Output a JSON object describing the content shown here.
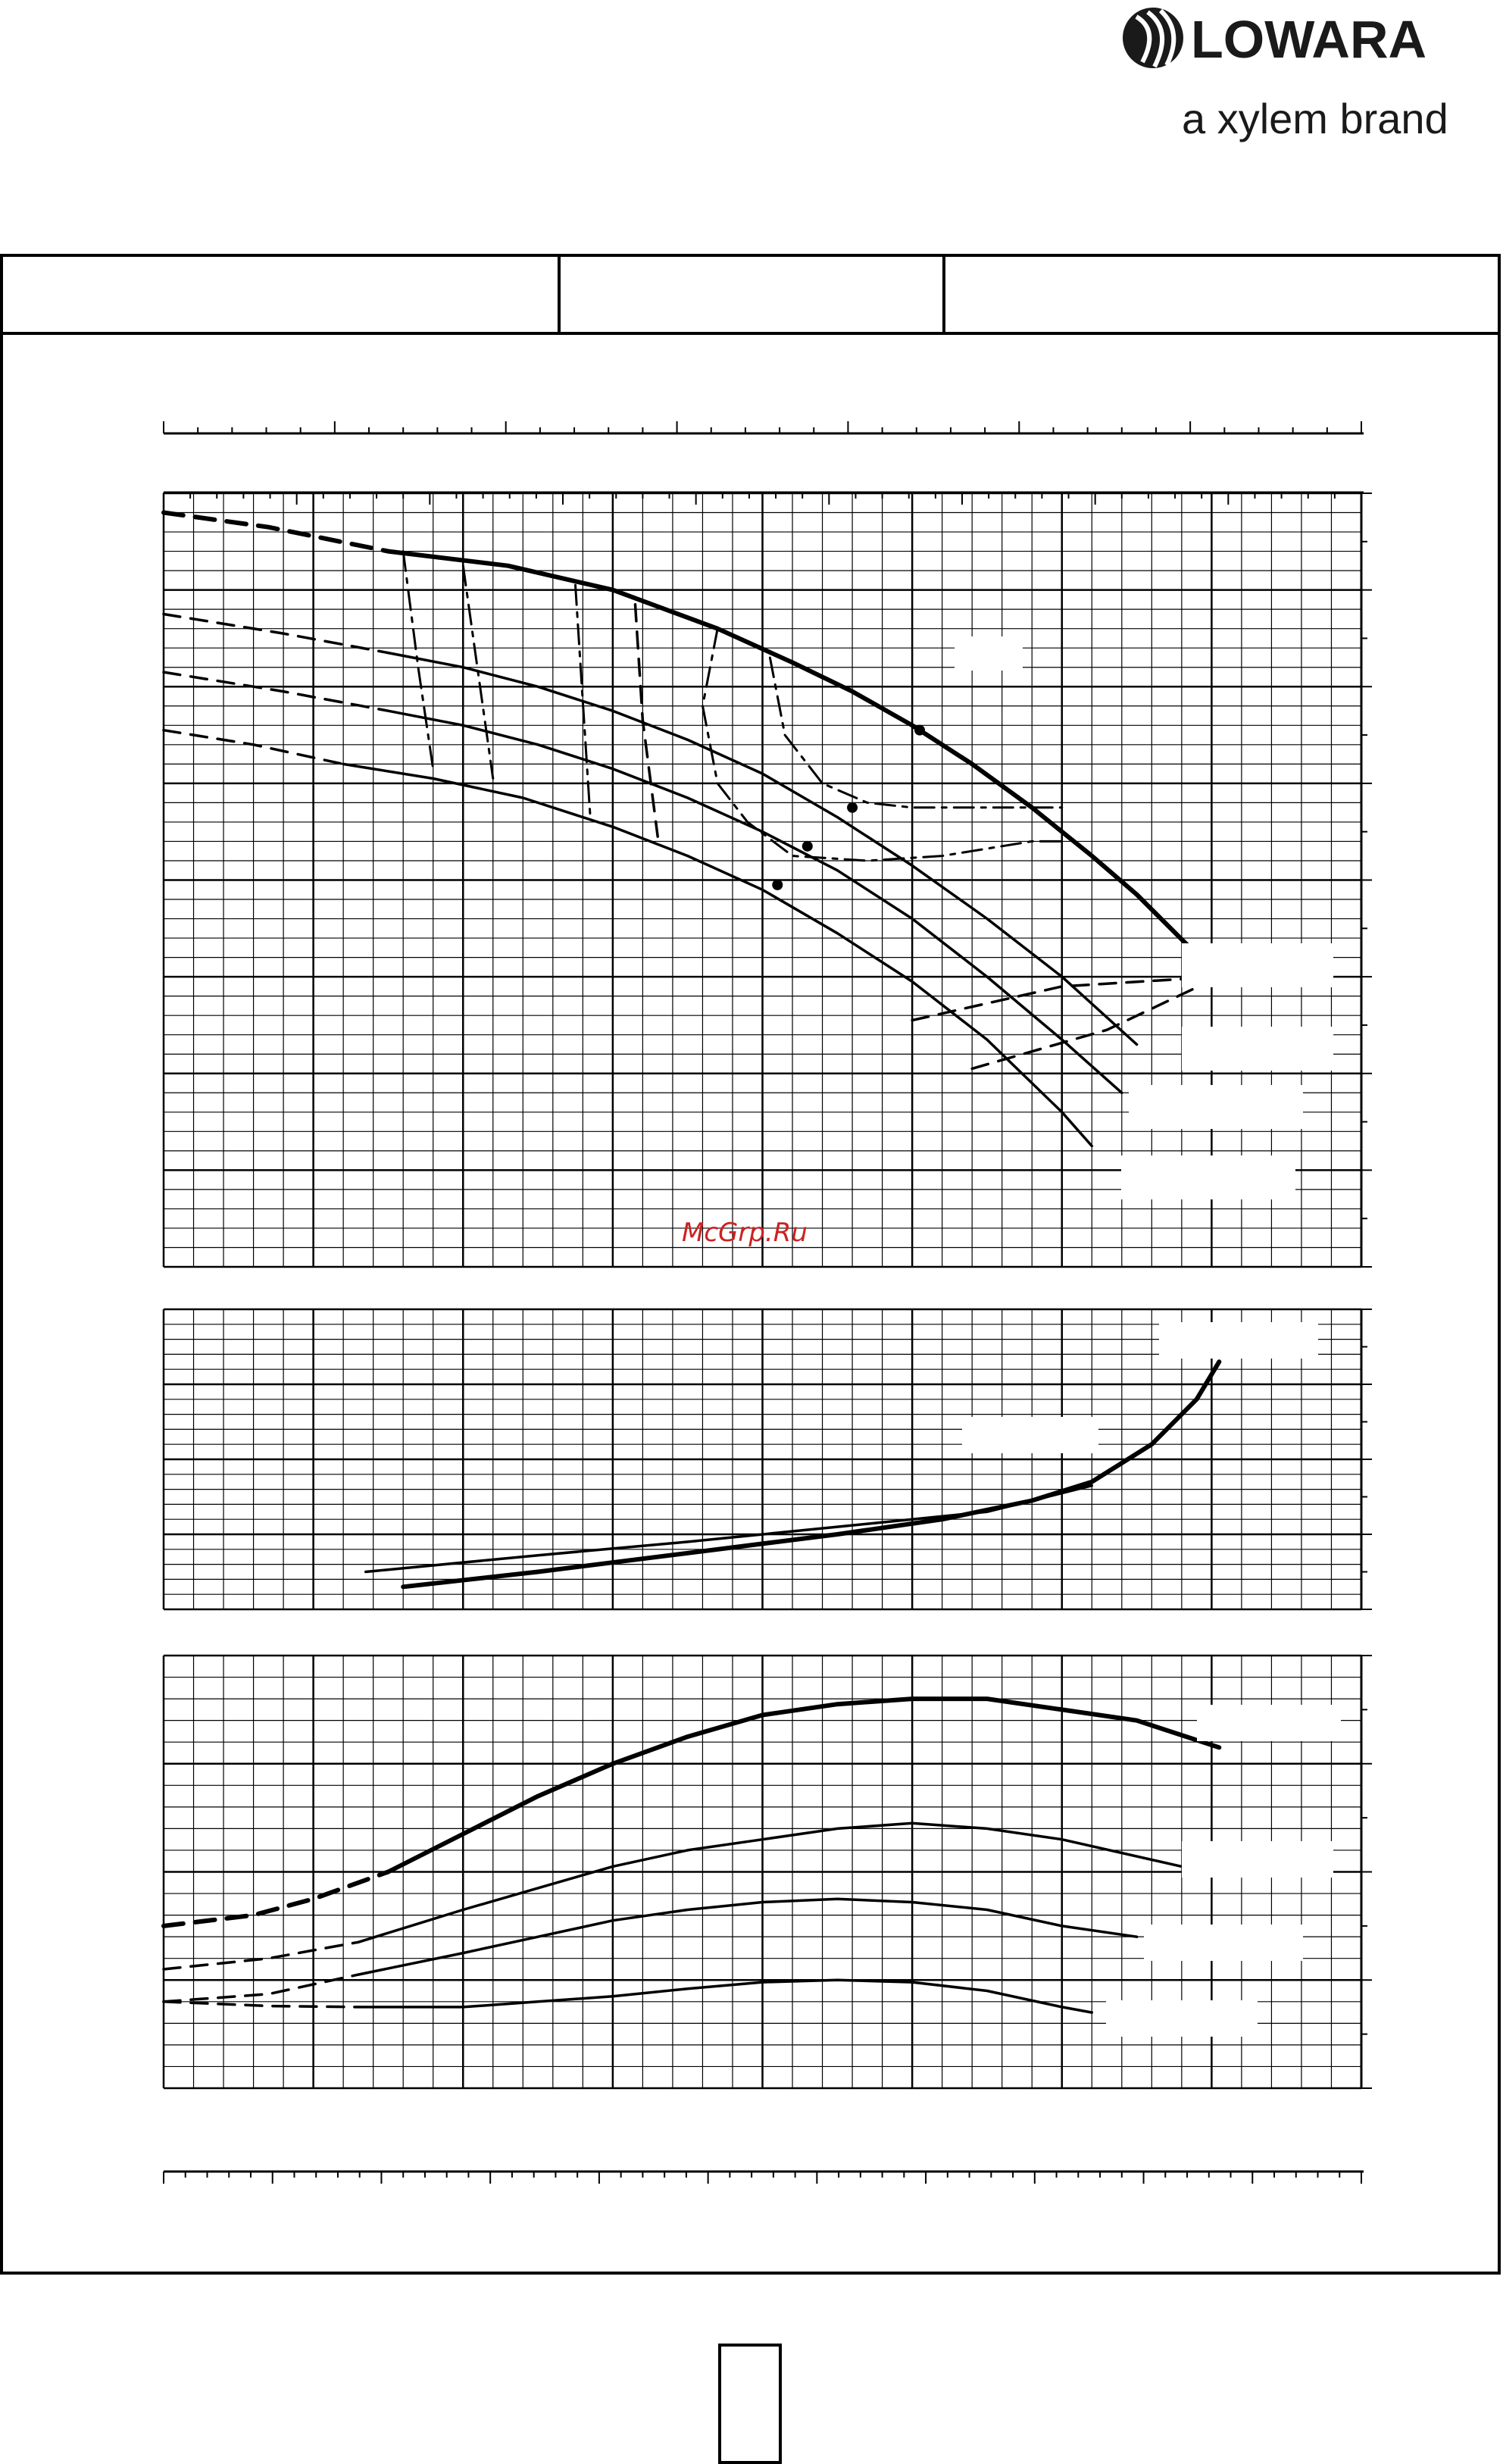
{
  "brand": {
    "name": "LOWARA",
    "tagline": "a xylem brand",
    "accent": "#1a1a1a"
  },
  "watermark": {
    "text": "McGrp.Ru",
    "color": "#cc2222"
  },
  "header_table": {
    "cells": [
      "",
      "",
      ""
    ]
  },
  "chart_data": [
    {
      "type": "line",
      "panel": "head",
      "title": "",
      "xlabel": "",
      "ylabel": "",
      "xlim": [
        0,
        8
      ],
      "ylim": [
        0,
        8
      ],
      "grid": true,
      "series": [
        {
          "style": "solid-thick",
          "x": [
            1.5,
            2.3,
            3.0,
            3.7,
            4.2,
            4.6,
            5.0,
            5.4,
            5.8,
            6.2,
            6.5,
            7.05
          ],
          "y": [
            7.4,
            7.25,
            7.0,
            6.6,
            6.25,
            5.95,
            5.6,
            5.2,
            4.75,
            4.25,
            3.85,
            3.0
          ]
        },
        {
          "style": "dashed-thick",
          "x": [
            0.0,
            0.7,
            1.5
          ],
          "y": [
            7.8,
            7.65,
            7.4
          ]
        },
        {
          "style": "solid",
          "x": [
            1.5,
            2.0,
            2.5,
            3.0,
            3.5,
            4.0,
            4.5,
            5.0,
            5.5,
            6.0,
            6.5
          ],
          "y": [
            6.35,
            6.2,
            6.0,
            5.75,
            5.45,
            5.1,
            4.65,
            4.15,
            3.6,
            3.0,
            2.3
          ]
        },
        {
          "style": "dashed",
          "x": [
            0.0,
            0.8,
            1.5
          ],
          "y": [
            6.75,
            6.55,
            6.35
          ]
        },
        {
          "style": "solid",
          "x": [
            1.5,
            2.0,
            2.5,
            3.0,
            3.5,
            4.0,
            4.5,
            5.0,
            5.5,
            6.0,
            6.4
          ],
          "y": [
            5.75,
            5.6,
            5.4,
            5.15,
            4.85,
            4.5,
            4.1,
            3.6,
            3.0,
            2.35,
            1.8
          ]
        },
        {
          "style": "dashed",
          "x": [
            0.0,
            0.8,
            1.5
          ],
          "y": [
            6.15,
            5.95,
            5.75
          ]
        },
        {
          "style": "solid",
          "x": [
            1.2,
            1.8,
            2.4,
            3.0,
            3.5,
            4.0,
            4.5,
            5.0,
            5.5,
            6.0,
            6.2
          ],
          "y": [
            5.2,
            5.05,
            4.85,
            4.55,
            4.25,
            3.9,
            3.45,
            2.95,
            2.35,
            1.6,
            1.25
          ]
        },
        {
          "style": "dashed",
          "x": [
            0.0,
            0.6,
            1.2
          ],
          "y": [
            5.55,
            5.4,
            5.2
          ]
        },
        {
          "style": "dashdot",
          "x": [
            1.6,
            1.7,
            1.8
          ],
          "y": [
            7.4,
            6.2,
            5.15
          ]
        },
        {
          "style": "dashdot",
          "x": [
            3.7,
            3.6,
            3.7,
            3.9,
            4.2,
            4.7,
            5.2,
            5.8,
            6.0
          ],
          "y": [
            6.6,
            5.8,
            5.0,
            4.6,
            4.25,
            4.2,
            4.25,
            4.4,
            4.4
          ]
        },
        {
          "style": "dashdot",
          "x": [
            2.0,
            2.1,
            2.2
          ],
          "y": [
            7.25,
            6.15,
            5.05
          ]
        },
        {
          "style": "dashdot",
          "x": [
            2.75,
            2.8,
            2.85
          ],
          "y": [
            7.05,
            5.85,
            4.65
          ]
        },
        {
          "style": "dashed",
          "x": [
            3.15,
            3.2,
            3.3
          ],
          "y": [
            6.85,
            5.65,
            4.45
          ]
        },
        {
          "style": "dashdot",
          "x": [
            4.05,
            4.15,
            4.4,
            4.7,
            5.0,
            5.5,
            6.0
          ],
          "y": [
            6.3,
            5.5,
            5.0,
            4.8,
            4.75,
            4.75,
            4.75
          ]
        },
        {
          "style": "dashed",
          "x": [
            5.0,
            6.0,
            7.05
          ],
          "y": [
            2.55,
            2.9,
            3.0
          ]
        },
        {
          "style": "dashed",
          "x": [
            5.4,
            6.3,
            7.05
          ],
          "y": [
            2.05,
            2.45,
            3.0
          ]
        }
      ],
      "markers": {
        "x": [
          5.05,
          4.6,
          4.3,
          4.1
        ],
        "y": [
          5.55,
          4.75,
          4.35,
          3.95
        ]
      }
    },
    {
      "type": "line",
      "panel": "npsh",
      "title": "",
      "xlabel": "",
      "ylabel": "",
      "xlim": [
        0,
        8
      ],
      "ylim": [
        0,
        4
      ],
      "grid": true,
      "series": [
        {
          "style": "solid-thick",
          "x": [
            1.6,
            2.5,
            3.5,
            4.5,
            5.2,
            5.8,
            6.2,
            6.6,
            6.9,
            7.05
          ],
          "y": [
            0.3,
            0.5,
            0.75,
            1.0,
            1.2,
            1.45,
            1.7,
            2.2,
            2.8,
            3.3
          ]
        },
        {
          "style": "solid",
          "x": [
            1.35,
            2.5,
            3.5,
            4.5,
            5.5,
            6.2
          ],
          "y": [
            0.5,
            0.72,
            0.9,
            1.1,
            1.3,
            1.65
          ]
        }
      ]
    },
    {
      "type": "line",
      "panel": "power",
      "title": "",
      "xlabel": "",
      "ylabel": "",
      "xlim": [
        0,
        8
      ],
      "ylim": [
        0,
        4
      ],
      "grid": true,
      "series": [
        {
          "style": "solid-thick",
          "x": [
            1.5,
            2.0,
            2.5,
            3.0,
            3.5,
            4.0,
            4.5,
            5.0,
            5.5,
            6.0,
            6.5,
            7.05
          ],
          "y": [
            2.0,
            2.35,
            2.7,
            3.0,
            3.25,
            3.45,
            3.55,
            3.6,
            3.6,
            3.5,
            3.4,
            3.15
          ]
        },
        {
          "style": "dashed-thick",
          "x": [
            0.0,
            0.6,
            1.0,
            1.5
          ],
          "y": [
            1.5,
            1.6,
            1.75,
            2.0
          ]
        },
        {
          "style": "solid",
          "x": [
            1.3,
            2.0,
            2.5,
            3.0,
            3.5,
            4.0,
            4.5,
            5.0,
            5.5,
            6.0,
            6.8
          ],
          "y": [
            1.35,
            1.65,
            1.85,
            2.05,
            2.2,
            2.3,
            2.4,
            2.45,
            2.4,
            2.3,
            2.05
          ]
        },
        {
          "style": "dashed",
          "x": [
            0.0,
            0.7,
            1.3
          ],
          "y": [
            1.1,
            1.2,
            1.35
          ]
        },
        {
          "style": "solid",
          "x": [
            1.3,
            2.0,
            2.5,
            3.0,
            3.5,
            4.0,
            4.5,
            5.0,
            5.5,
            6.0,
            6.5
          ],
          "y": [
            1.05,
            1.25,
            1.4,
            1.55,
            1.65,
            1.72,
            1.75,
            1.72,
            1.65,
            1.5,
            1.4
          ]
        },
        {
          "style": "dashed",
          "x": [
            0.0,
            0.7,
            1.3
          ],
          "y": [
            0.8,
            0.87,
            1.05
          ]
        },
        {
          "style": "solid",
          "x": [
            1.3,
            2.0,
            2.5,
            3.0,
            3.5,
            4.0,
            4.5,
            5.0,
            5.5,
            6.0,
            6.2
          ],
          "y": [
            0.75,
            0.75,
            0.8,
            0.85,
            0.92,
            0.98,
            1.0,
            0.98,
            0.9,
            0.75,
            0.7
          ]
        },
        {
          "style": "dashed",
          "x": [
            0.0,
            0.7,
            1.3
          ],
          "y": [
            0.8,
            0.76,
            0.75
          ]
        }
      ]
    }
  ]
}
